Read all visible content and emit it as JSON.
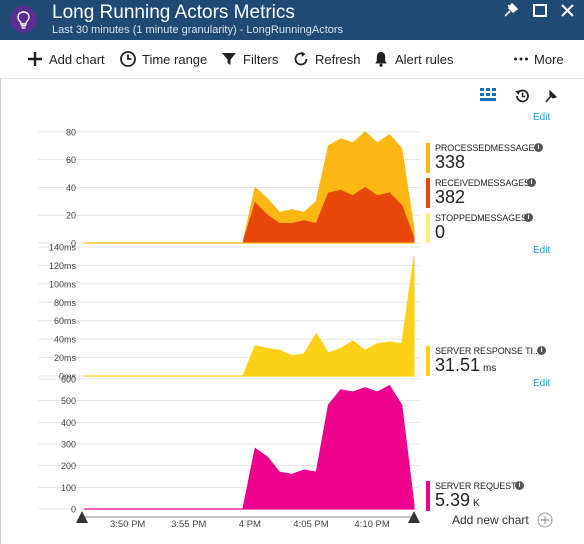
{
  "header": {
    "title": "Long Running Actors Metrics",
    "subtitle": "Last 30 minutes (1 minute granularity) - LongRunningActors",
    "accent": "#1e4a74"
  },
  "toolbar": {
    "add_chart": "Add chart",
    "time_range": "Time range",
    "filters": "Filters",
    "refresh": "Refresh",
    "alert_rules": "Alert rules",
    "more": "More"
  },
  "panel": {
    "edit_label": "Edit",
    "add_new_chart": "Add new chart"
  },
  "x_axis": {
    "ticks": [
      "3:50 PM",
      "3:55 PM",
      "4 PM",
      "4:05 PM",
      "4:10 PM"
    ]
  },
  "charts": [
    {
      "name": "messages",
      "y_ticks": [
        "80",
        "60",
        "40",
        "20",
        "0"
      ],
      "edit_label": "Edit",
      "legend": [
        {
          "name": "PROCESSEDMESSAGES",
          "value": "338",
          "unit": "",
          "color": "#fcb714"
        },
        {
          "name": "RECEIVEDMESSAGES",
          "value": "382",
          "unit": "",
          "color": "#e8470a"
        },
        {
          "name": "STOPPEDMESSAGES",
          "value": "0",
          "unit": "",
          "color": "#fcee7a"
        }
      ]
    },
    {
      "name": "response-time",
      "y_ticks": [
        "140ms",
        "120ms",
        "100ms",
        "80ms",
        "60ms",
        "40ms",
        "20ms",
        "0ms"
      ],
      "edit_label": "Edit",
      "legend": [
        {
          "name": "SERVER RESPONSE TI...",
          "value": "31.51",
          "unit": "ms",
          "color": "#fcd116"
        }
      ]
    },
    {
      "name": "requests",
      "y_ticks": [
        "600",
        "500",
        "400",
        "300",
        "200",
        "100",
        "0"
      ],
      "legend": [
        {
          "name": "SERVER REQUESTS",
          "value": "5.39",
          "unit": "K",
          "color": "#ec008c"
        }
      ]
    }
  ],
  "chart_data": [
    {
      "type": "area",
      "title": "",
      "x": [
        "3:47",
        "3:48",
        "3:49",
        "3:50",
        "3:51",
        "3:52",
        "3:53",
        "3:54",
        "3:55",
        "3:56",
        "3:57",
        "3:58",
        "3:59",
        "4:00",
        "4:01",
        "4:02",
        "4:03",
        "4:04",
        "4:05",
        "4:06",
        "4:07",
        "4:08",
        "4:09",
        "4:10",
        "4:11",
        "4:12",
        "4:13",
        "4:14"
      ],
      "ylim": [
        0,
        90
      ],
      "series": [
        {
          "name": "PROCESSEDMESSAGES",
          "color": "#fcb714",
          "values": [
            0,
            0,
            0,
            0,
            0,
            0,
            0,
            0,
            0,
            0,
            0,
            0,
            0,
            0,
            40,
            32,
            22,
            24,
            22,
            30,
            70,
            75,
            72,
            80,
            72,
            78,
            68,
            10
          ]
        },
        {
          "name": "RECEIVEDMESSAGES",
          "color": "#e8470a",
          "values": [
            0,
            0,
            0,
            0,
            0,
            0,
            0,
            0,
            0,
            0,
            0,
            0,
            0,
            0,
            29,
            20,
            14,
            14,
            16,
            14,
            36,
            38,
            34,
            40,
            34,
            36,
            27,
            4
          ]
        },
        {
          "name": "STOPPEDMESSAGES",
          "color": "#fcee7a",
          "values": [
            0,
            0,
            0,
            0,
            0,
            0,
            0,
            0,
            0,
            0,
            0,
            0,
            0,
            0,
            0,
            0,
            0,
            0,
            0,
            0,
            0,
            0,
            0,
            0,
            0,
            0,
            0,
            0
          ]
        }
      ]
    },
    {
      "type": "area",
      "title": "",
      "x": [
        "3:47",
        "3:48",
        "3:49",
        "3:50",
        "3:51",
        "3:52",
        "3:53",
        "3:54",
        "3:55",
        "3:56",
        "3:57",
        "3:58",
        "3:59",
        "4:00",
        "4:01",
        "4:02",
        "4:03",
        "4:04",
        "4:05",
        "4:06",
        "4:07",
        "4:08",
        "4:09",
        "4:10",
        "4:11",
        "4:12",
        "4:13",
        "4:14"
      ],
      "ylim": [
        0,
        140
      ],
      "series": [
        {
          "name": "SERVER RESPONSE TI...",
          "color": "#fcd116",
          "values": [
            0,
            0,
            0,
            0,
            0,
            0,
            0,
            0,
            0,
            0,
            0,
            0,
            0,
            0,
            33,
            30,
            28,
            22,
            24,
            46,
            25,
            30,
            38,
            28,
            35,
            37,
            35,
            130
          ]
        }
      ]
    },
    {
      "type": "area",
      "title": "",
      "x": [
        "3:47",
        "3:48",
        "3:49",
        "3:50",
        "3:51",
        "3:52",
        "3:53",
        "3:54",
        "3:55",
        "3:56",
        "3:57",
        "3:58",
        "3:59",
        "4:00",
        "4:01",
        "4:02",
        "4:03",
        "4:04",
        "4:05",
        "4:06",
        "4:07",
        "4:08",
        "4:09",
        "4:10",
        "4:11",
        "4:12",
        "4:13",
        "4:14"
      ],
      "ylim": [
        0,
        600
      ],
      "series": [
        {
          "name": "SERVER REQUESTS",
          "color": "#ec008c",
          "values": [
            0,
            0,
            0,
            0,
            0,
            0,
            0,
            0,
            0,
            0,
            0,
            0,
            0,
            0,
            280,
            240,
            170,
            160,
            180,
            170,
            480,
            550,
            540,
            560,
            540,
            570,
            480,
            20
          ]
        }
      ]
    }
  ]
}
